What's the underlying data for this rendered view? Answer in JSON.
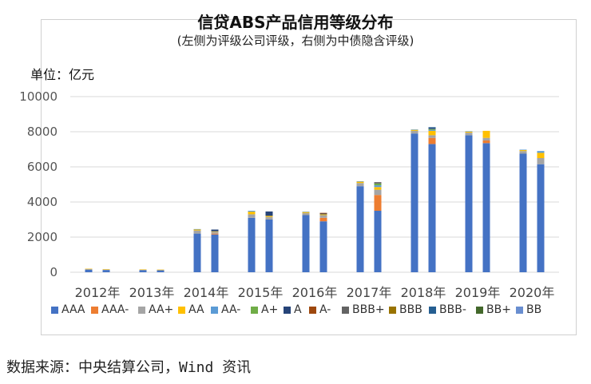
{
  "header": {
    "title": "信贷ABS产品信用等级分布",
    "subtitle": "(左侧为评级公司评级，右侧为中债隐含评级)",
    "unit": "单位：亿元"
  },
  "footer": {
    "source": "数据来源：中央结算公司，Wind 资讯"
  },
  "chart_data": {
    "type": "bar",
    "stacked": true,
    "grouped_pairs": true,
    "ylim": [
      0,
      10000
    ],
    "yticks": [
      0,
      2000,
      4000,
      6000,
      8000,
      10000
    ],
    "ytick_labels": [
      "0",
      "2000",
      "4000",
      "6000",
      "8000",
      "10000"
    ],
    "categories": [
      "2012年",
      "2013年",
      "2014年",
      "2015年",
      "2016年",
      "2017年",
      "2018年",
      "2019年",
      "2020年"
    ],
    "ratings": [
      "AAA",
      "AAA-",
      "AA+",
      "AA",
      "AA-",
      "A+",
      "A",
      "A-",
      "BBB+",
      "BBB",
      "BBB-",
      "BB+",
      "BB"
    ],
    "colors": [
      "#4472C4",
      "#ED7D31",
      "#A5A5A5",
      "#FFC000",
      "#5B9BD5",
      "#70AD47",
      "#264478",
      "#9E480E",
      "#636363",
      "#997300",
      "#255E91",
      "#43682B",
      "#698ED0"
    ],
    "agency_rating_values": [
      [
        150,
        0,
        40,
        10,
        0,
        0,
        0,
        0,
        0,
        0,
        0,
        0,
        0
      ],
      [
        120,
        0,
        30,
        10,
        0,
        0,
        0,
        0,
        0,
        0,
        0,
        0,
        0
      ],
      [
        2200,
        0,
        180,
        60,
        20,
        0,
        0,
        0,
        0,
        0,
        0,
        0,
        0
      ],
      [
        3100,
        0,
        200,
        150,
        50,
        0,
        0,
        0,
        0,
        0,
        0,
        0,
        0
      ],
      [
        3250,
        0,
        120,
        60,
        20,
        0,
        0,
        0,
        0,
        0,
        0,
        0,
        0
      ],
      [
        4900,
        0,
        180,
        80,
        20,
        0,
        0,
        0,
        0,
        0,
        0,
        0,
        0
      ],
      [
        7900,
        0,
        150,
        60,
        20,
        0,
        0,
        0,
        0,
        0,
        0,
        0,
        0
      ],
      [
        7800,
        0,
        150,
        60,
        20,
        0,
        0,
        0,
        0,
        0,
        0,
        0,
        0
      ],
      [
        6750,
        0,
        150,
        60,
        20,
        0,
        0,
        0,
        0,
        0,
        0,
        0,
        0
      ]
    ],
    "implied_rating_values": [
      [
        130,
        0,
        30,
        10,
        0,
        0,
        0,
        0,
        0,
        0,
        0,
        0,
        0
      ],
      [
        110,
        0,
        30,
        10,
        0,
        0,
        0,
        0,
        0,
        0,
        0,
        0,
        0
      ],
      [
        2150,
        50,
        100,
        30,
        0,
        0,
        100,
        0,
        0,
        0,
        0,
        0,
        0
      ],
      [
        3000,
        0,
        150,
        60,
        0,
        0,
        250,
        0,
        0,
        0,
        0,
        0,
        0
      ],
      [
        2900,
        200,
        150,
        50,
        0,
        0,
        40,
        40,
        0,
        0,
        0,
        0,
        0
      ],
      [
        3500,
        900,
        300,
        150,
        100,
        100,
        0,
        0,
        80,
        0,
        0,
        0,
        0
      ],
      [
        7300,
        350,
        150,
        250,
        50,
        50,
        50,
        0,
        0,
        0,
        60,
        0,
        0
      ],
      [
        7350,
        150,
        150,
        400,
        0,
        0,
        0,
        0,
        0,
        0,
        0,
        0,
        0
      ],
      [
        6150,
        0,
        350,
        300,
        100,
        0,
        0,
        0,
        0,
        0,
        0,
        0,
        0
      ]
    ]
  }
}
